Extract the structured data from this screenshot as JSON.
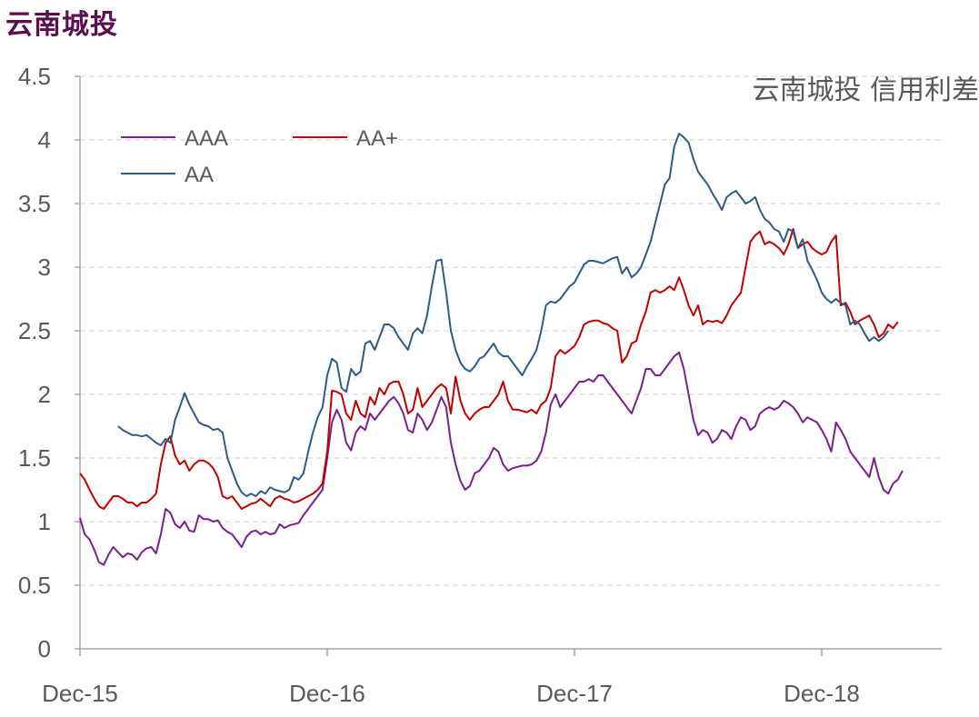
{
  "page_title": "云南城投",
  "colors": {
    "AAA": "#7b1f8e",
    "AA+": "#c00000",
    "AA": "#2e5a88",
    "axis": "#a6a6a6",
    "grid": "#d9d9d9",
    "text": "#595959",
    "title": "#5b0f4f"
  },
  "chart_data": {
    "type": "line",
    "title": "云南城投 信用利差",
    "xlabel": "",
    "ylabel": "",
    "ylim": [
      0,
      4.5
    ],
    "y_ticks": [
      "0",
      "0.5",
      "1",
      "1.5",
      "2",
      "2.5",
      "3",
      "3.5",
      "4",
      "4.5"
    ],
    "x_ticks": [
      "Dec-15",
      "Dec-16",
      "Dec-17",
      "Dec-18"
    ],
    "x_tick_positions_weeks": [
      0,
      52,
      104,
      156
    ],
    "grid": true,
    "legend_placement": "top-left",
    "series": [
      {
        "name": "AAA",
        "values": [
          1.03,
          0.9,
          0.86,
          0.78,
          0.68,
          0.66,
          0.74,
          0.8,
          0.76,
          0.72,
          0.75,
          0.74,
          0.7,
          0.76,
          0.79,
          0.8,
          0.75,
          0.9,
          1.1,
          1.07,
          0.98,
          0.95,
          1.0,
          0.93,
          0.92,
          1.05,
          1.02,
          1.02,
          1.0,
          1.01,
          0.95,
          0.92,
          0.9,
          0.85,
          0.8,
          0.88,
          0.92,
          0.93,
          0.9,
          0.92,
          0.9,
          0.91,
          0.98,
          0.95,
          0.97,
          0.98,
          0.99,
          1.05,
          1.1,
          1.15,
          1.2,
          1.25,
          1.5,
          1.78,
          1.88,
          1.8,
          1.62,
          1.56,
          1.7,
          1.75,
          1.72,
          1.85,
          1.8,
          1.85,
          1.9,
          1.95,
          1.98,
          1.93,
          1.85,
          1.72,
          1.7,
          1.85,
          1.8,
          1.72,
          1.78,
          1.88,
          1.98,
          1.9,
          1.62,
          1.45,
          1.32,
          1.25,
          1.28,
          1.38,
          1.4,
          1.45,
          1.5,
          1.58,
          1.55,
          1.45,
          1.4,
          1.42,
          1.43,
          1.44,
          1.44,
          1.45,
          1.48,
          1.55,
          1.7,
          1.92,
          2.0,
          1.9,
          1.95,
          2.0,
          2.05,
          2.1,
          2.1,
          2.12,
          2.1,
          2.15,
          2.15,
          2.1,
          2.05,
          2.0,
          1.95,
          1.9,
          1.85,
          1.95,
          2.05,
          2.2,
          2.2,
          2.15,
          2.15,
          2.2,
          2.25,
          2.3,
          2.33,
          2.2,
          2.0,
          1.8,
          1.68,
          1.72,
          1.7,
          1.62,
          1.65,
          1.72,
          1.7,
          1.65,
          1.75,
          1.82,
          1.8,
          1.72,
          1.75,
          1.85,
          1.88,
          1.9,
          1.88,
          1.9,
          1.95,
          1.93,
          1.9,
          1.85,
          1.78,
          1.82,
          1.8,
          1.78,
          1.72,
          1.65,
          1.55,
          1.78,
          1.72,
          1.65,
          1.55,
          1.5,
          1.45,
          1.4,
          1.35,
          1.5,
          1.35,
          1.25,
          1.22,
          1.3,
          1.33,
          1.4
        ]
      },
      {
        "name": "AA+",
        "values": [
          1.38,
          1.33,
          1.25,
          1.18,
          1.12,
          1.1,
          1.15,
          1.2,
          1.2,
          1.18,
          1.15,
          1.15,
          1.12,
          1.15,
          1.15,
          1.18,
          1.22,
          1.45,
          1.62,
          1.67,
          1.52,
          1.45,
          1.48,
          1.4,
          1.45,
          1.48,
          1.48,
          1.46,
          1.42,
          1.35,
          1.2,
          1.18,
          1.2,
          1.15,
          1.1,
          1.12,
          1.14,
          1.15,
          1.18,
          1.15,
          1.12,
          1.18,
          1.2,
          1.18,
          1.17,
          1.15,
          1.16,
          1.18,
          1.2,
          1.22,
          1.25,
          1.3,
          1.55,
          2.03,
          2.02,
          2.0,
          1.85,
          1.8,
          1.95,
          1.85,
          1.82,
          1.98,
          1.92,
          2.05,
          2.0,
          2.08,
          2.1,
          2.1,
          2.0,
          1.85,
          1.88,
          2.05,
          1.9,
          1.95,
          2.0,
          2.05,
          2.08,
          2.05,
          1.85,
          2.14,
          1.95,
          1.85,
          1.8,
          1.85,
          1.88,
          1.9,
          1.9,
          1.95,
          2.0,
          2.1,
          1.95,
          1.88,
          1.88,
          1.87,
          1.86,
          1.88,
          1.85,
          1.92,
          1.95,
          2.05,
          2.3,
          2.35,
          2.32,
          2.35,
          2.38,
          2.45,
          2.55,
          2.57,
          2.58,
          2.58,
          2.56,
          2.55,
          2.52,
          2.5,
          2.25,
          2.3,
          2.4,
          2.42,
          2.55,
          2.65,
          2.8,
          2.82,
          2.8,
          2.82,
          2.85,
          2.82,
          2.92,
          2.82,
          2.7,
          2.62,
          2.7,
          2.55,
          2.58,
          2.57,
          2.58,
          2.56,
          2.62,
          2.7,
          2.75,
          2.8,
          3.0,
          3.2,
          3.25,
          3.28,
          3.18,
          3.2,
          3.18,
          3.15,
          3.1,
          3.18,
          3.3,
          3.15,
          3.18,
          3.2,
          3.15,
          3.12,
          3.1,
          3.12,
          3.2,
          3.25,
          2.7,
          2.72,
          2.65,
          2.55,
          2.58,
          2.6,
          2.62,
          2.55,
          2.45,
          2.48,
          2.55,
          2.52,
          2.57
        ]
      },
      {
        "name": "AA",
        "values": [
          null,
          null,
          null,
          null,
          null,
          null,
          null,
          null,
          1.75,
          1.72,
          1.7,
          1.68,
          1.68,
          1.67,
          1.68,
          1.65,
          1.62,
          1.6,
          1.65,
          1.62,
          1.8,
          1.9,
          2.01,
          1.92,
          1.85,
          1.78,
          1.76,
          1.75,
          1.72,
          1.73,
          1.7,
          1.5,
          1.4,
          1.3,
          1.23,
          1.2,
          1.22,
          1.2,
          1.24,
          1.22,
          1.27,
          1.25,
          1.24,
          1.23,
          1.25,
          1.35,
          1.33,
          1.38,
          1.55,
          1.7,
          1.82,
          1.9,
          2.15,
          2.28,
          2.25,
          2.05,
          2.02,
          2.2,
          2.15,
          2.18,
          2.4,
          2.42,
          2.35,
          2.45,
          2.55,
          2.55,
          2.52,
          2.45,
          2.4,
          2.35,
          2.48,
          2.52,
          2.48,
          2.62,
          2.85,
          3.05,
          3.06,
          2.8,
          2.5,
          2.35,
          2.25,
          2.2,
          2.18,
          2.22,
          2.28,
          2.3,
          2.35,
          2.4,
          2.33,
          2.3,
          2.3,
          2.25,
          2.2,
          2.15,
          2.22,
          2.28,
          2.35,
          2.5,
          2.7,
          2.73,
          2.72,
          2.75,
          2.8,
          2.85,
          2.88,
          2.95,
          3.02,
          3.05,
          3.05,
          3.04,
          3.03,
          3.05,
          3.07,
          3.08,
          2.95,
          3.0,
          2.92,
          2.95,
          3.0,
          3.1,
          3.2,
          3.35,
          3.5,
          3.65,
          3.7,
          3.95,
          4.05,
          4.02,
          3.98,
          3.85,
          3.75,
          3.7,
          3.65,
          3.58,
          3.52,
          3.45,
          3.55,
          3.58,
          3.6,
          3.55,
          3.5,
          3.52,
          3.55,
          3.45,
          3.38,
          3.35,
          3.3,
          3.28,
          3.2,
          3.3,
          3.28,
          3.15,
          3.22,
          3.05,
          2.98,
          2.9,
          2.8,
          2.75,
          2.72,
          2.75,
          2.72,
          2.7,
          2.55,
          2.58,
          2.55,
          2.48,
          2.42,
          2.45,
          2.42,
          2.45,
          2.5
        ]
      }
    ]
  }
}
